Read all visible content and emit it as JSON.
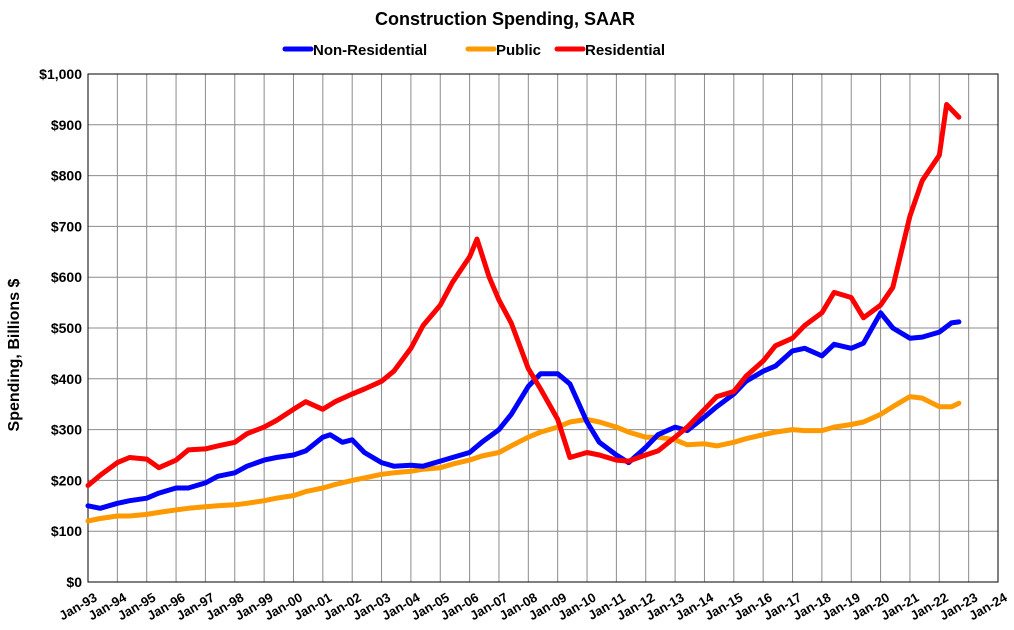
{
  "chart_data": {
    "type": "line",
    "title": "Construction Spending, SAAR",
    "ylabel": "Spending, Billions $",
    "xlabel": "",
    "ylim": [
      0,
      1000
    ],
    "ytick_step": 100,
    "ytick_labels": [
      "$0",
      "$100",
      "$200",
      "$300",
      "$400",
      "$500",
      "$600",
      "$700",
      "$800",
      "$900",
      "$1,000"
    ],
    "x_tick_labels": [
      "Jan-93",
      "Jan-94",
      "Jan-95",
      "Jan-96",
      "Jan-97",
      "Jan-98",
      "Jan-99",
      "Jan-00",
      "Jan-01",
      "Jan-02",
      "Jan-03",
      "Jan-04",
      "Jan-05",
      "Jan-06",
      "Jan-07",
      "Jan-08",
      "Jan-09",
      "Jan-10",
      "Jan-11",
      "Jan-12",
      "Jan-13",
      "Jan-14",
      "Jan-15",
      "Jan-16",
      "Jan-17",
      "Jan-18",
      "Jan-19",
      "Jan-20",
      "Jan-21",
      "Jan-22",
      "Jan-23",
      "Jan-24"
    ],
    "xlim": [
      1993,
      2024
    ],
    "grid": true,
    "legend_position": "top",
    "series": [
      {
        "name": "Non-Residential",
        "color": "#0000ff",
        "x": [
          "1993-01",
          "1993-06",
          "1994-01",
          "1994-06",
          "1995-01",
          "1995-06",
          "1996-01",
          "1996-06",
          "1997-01",
          "1997-06",
          "1998-01",
          "1998-06",
          "1999-01",
          "1999-06",
          "2000-01",
          "2000-06",
          "2001-01",
          "2001-04",
          "2001-09",
          "2002-01",
          "2002-06",
          "2003-01",
          "2003-06",
          "2004-01",
          "2004-06",
          "2005-01",
          "2005-06",
          "2006-01",
          "2006-06",
          "2007-01",
          "2007-06",
          "2008-01",
          "2008-06",
          "2009-01",
          "2009-06",
          "2010-01",
          "2010-06",
          "2011-01",
          "2011-06",
          "2012-01",
          "2012-06",
          "2013-01",
          "2013-06",
          "2014-01",
          "2014-06",
          "2015-01",
          "2015-06",
          "2016-01",
          "2016-06",
          "2017-01",
          "2017-06",
          "2018-01",
          "2018-06",
          "2019-01",
          "2019-06",
          "2020-01",
          "2020-06",
          "2021-01",
          "2021-06",
          "2022-01",
          "2022-06",
          "2022-09"
        ],
        "values": [
          150,
          145,
          155,
          160,
          165,
          175,
          185,
          185,
          195,
          208,
          215,
          228,
          240,
          245,
          250,
          258,
          285,
          290,
          275,
          280,
          255,
          235,
          228,
          230,
          228,
          238,
          245,
          255,
          275,
          300,
          330,
          385,
          410,
          410,
          390,
          315,
          275,
          250,
          235,
          265,
          290,
          305,
          298,
          325,
          345,
          370,
          395,
          415,
          425,
          455,
          460,
          445,
          468,
          460,
          470,
          530,
          500,
          480,
          482,
          492,
          510,
          512
        ]
      },
      {
        "name": "Public",
        "color": "#ff9900",
        "x": [
          "1993-01",
          "1993-06",
          "1994-01",
          "1994-06",
          "1995-01",
          "1995-06",
          "1996-01",
          "1996-06",
          "1997-01",
          "1997-06",
          "1998-01",
          "1998-06",
          "1999-01",
          "1999-06",
          "2000-01",
          "2000-06",
          "2001-01",
          "2001-06",
          "2002-01",
          "2002-06",
          "2003-01",
          "2003-06",
          "2004-01",
          "2004-06",
          "2005-01",
          "2005-06",
          "2006-01",
          "2006-06",
          "2007-01",
          "2007-06",
          "2008-01",
          "2008-06",
          "2009-01",
          "2009-06",
          "2010-01",
          "2010-06",
          "2011-01",
          "2011-06",
          "2012-01",
          "2012-06",
          "2013-01",
          "2013-06",
          "2014-01",
          "2014-06",
          "2015-01",
          "2015-06",
          "2016-01",
          "2016-06",
          "2017-01",
          "2017-06",
          "2018-01",
          "2018-06",
          "2019-01",
          "2019-06",
          "2020-01",
          "2020-06",
          "2021-01",
          "2021-06",
          "2022-01",
          "2022-06",
          "2022-09"
        ],
        "values": [
          120,
          125,
          130,
          130,
          133,
          137,
          142,
          145,
          148,
          150,
          152,
          155,
          160,
          165,
          170,
          178,
          185,
          192,
          200,
          205,
          212,
          215,
          218,
          222,
          225,
          232,
          240,
          248,
          255,
          268,
          285,
          295,
          305,
          315,
          320,
          315,
          305,
          295,
          285,
          285,
          280,
          270,
          272,
          268,
          275,
          282,
          290,
          295,
          300,
          298,
          298,
          305,
          310,
          315,
          330,
          345,
          365,
          362,
          345,
          345,
          352
        ]
      },
      {
        "name": "Residential",
        "color": "#ff0000",
        "x": [
          "1993-01",
          "1993-06",
          "1994-01",
          "1994-06",
          "1995-01",
          "1995-06",
          "1996-01",
          "1996-06",
          "1997-01",
          "1997-06",
          "1998-01",
          "1998-06",
          "1999-01",
          "1999-06",
          "2000-01",
          "2000-06",
          "2001-01",
          "2001-06",
          "2002-01",
          "2002-06",
          "2003-01",
          "2003-06",
          "2004-01",
          "2004-06",
          "2005-01",
          "2005-06",
          "2006-01",
          "2006-04",
          "2006-09",
          "2007-01",
          "2007-06",
          "2008-01",
          "2008-06",
          "2009-01",
          "2009-06",
          "2010-01",
          "2010-06",
          "2011-01",
          "2011-06",
          "2012-01",
          "2012-06",
          "2013-01",
          "2013-06",
          "2014-01",
          "2014-06",
          "2015-01",
          "2015-06",
          "2016-01",
          "2016-06",
          "2017-01",
          "2017-06",
          "2018-01",
          "2018-06",
          "2019-01",
          "2019-06",
          "2020-01",
          "2020-06",
          "2021-01",
          "2021-06",
          "2022-01",
          "2022-04",
          "2022-09"
        ],
        "values": [
          190,
          210,
          235,
          245,
          242,
          225,
          240,
          260,
          262,
          268,
          275,
          292,
          305,
          318,
          340,
          355,
          340,
          355,
          370,
          380,
          395,
          415,
          460,
          505,
          545,
          590,
          640,
          675,
          600,
          555,
          510,
          420,
          380,
          320,
          245,
          255,
          250,
          240,
          238,
          250,
          258,
          285,
          305,
          340,
          365,
          375,
          405,
          435,
          465,
          480,
          505,
          530,
          570,
          560,
          520,
          545,
          580,
          720,
          790,
          840,
          940,
          915
        ]
      }
    ]
  }
}
